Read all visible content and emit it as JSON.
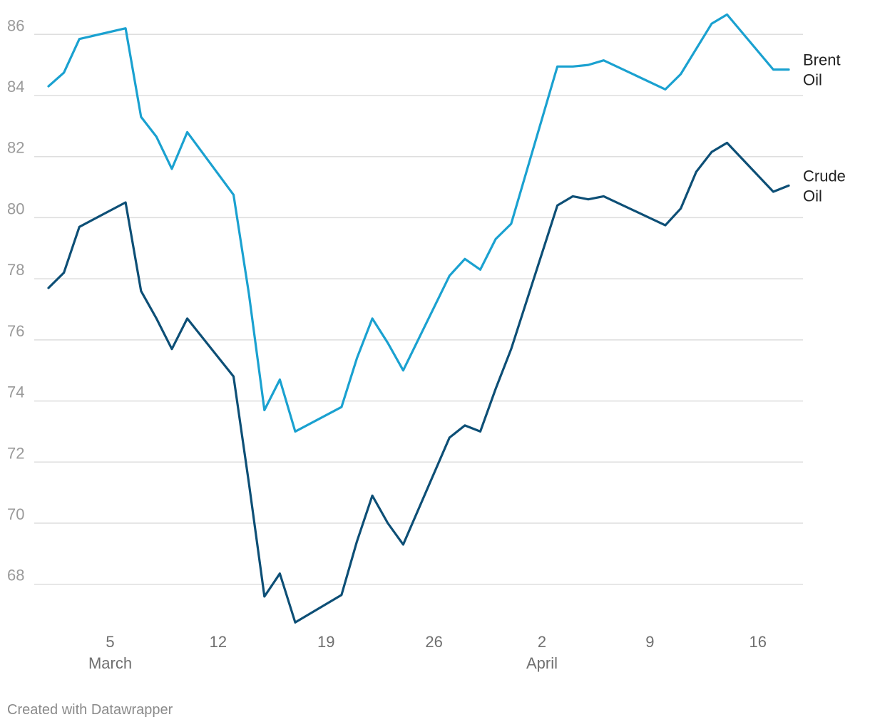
{
  "chart_data": {
    "type": "line",
    "title": "",
    "xlabel": "",
    "ylabel": "",
    "x_range": [
      "2020-03-01",
      "2020-04-18"
    ],
    "ylim": [
      66.5,
      86.8
    ],
    "y_ticks": [
      68,
      70,
      72,
      74,
      76,
      78,
      80,
      82,
      84,
      86
    ],
    "x_ticks": [
      {
        "date": "2020-03-05",
        "label": "5",
        "month": "March"
      },
      {
        "date": "2020-03-12",
        "label": "12",
        "month": ""
      },
      {
        "date": "2020-03-19",
        "label": "19",
        "month": ""
      },
      {
        "date": "2020-03-26",
        "label": "26",
        "month": ""
      },
      {
        "date": "2020-04-02",
        "label": "2",
        "month": "April"
      },
      {
        "date": "2020-04-09",
        "label": "9",
        "month": ""
      },
      {
        "date": "2020-04-16",
        "label": "16",
        "month": ""
      }
    ],
    "grid": true,
    "legend": "inline labels at right end of lines",
    "series": [
      {
        "name": "Brent Oil",
        "label_lines": [
          "Brent",
          "Oil"
        ],
        "color": "#1aa1d0",
        "points": [
          {
            "x": "2020-03-01",
            "y": 84.3
          },
          {
            "x": "2020-03-02",
            "y": 84.75
          },
          {
            "x": "2020-03-03",
            "y": 85.85
          },
          {
            "x": "2020-03-06",
            "y": 86.2
          },
          {
            "x": "2020-03-07",
            "y": 83.3
          },
          {
            "x": "2020-03-08",
            "y": 82.65
          },
          {
            "x": "2020-03-09",
            "y": 81.6
          },
          {
            "x": "2020-03-10",
            "y": 82.8
          },
          {
            "x": "2020-03-13",
            "y": 80.75
          },
          {
            "x": "2020-03-14",
            "y": 77.5
          },
          {
            "x": "2020-03-15",
            "y": 73.7
          },
          {
            "x": "2020-03-16",
            "y": 74.7
          },
          {
            "x": "2020-03-17",
            "y": 73.0
          },
          {
            "x": "2020-03-20",
            "y": 73.8
          },
          {
            "x": "2020-03-21",
            "y": 75.4
          },
          {
            "x": "2020-03-22",
            "y": 76.7
          },
          {
            "x": "2020-03-23",
            "y": 75.9
          },
          {
            "x": "2020-03-24",
            "y": 75.0
          },
          {
            "x": "2020-03-27",
            "y": 78.1
          },
          {
            "x": "2020-03-28",
            "y": 78.65
          },
          {
            "x": "2020-03-29",
            "y": 78.3
          },
          {
            "x": "2020-03-30",
            "y": 79.3
          },
          {
            "x": "2020-03-31",
            "y": 79.8
          },
          {
            "x": "2020-04-03",
            "y": 84.95
          },
          {
            "x": "2020-04-04",
            "y": 84.95
          },
          {
            "x": "2020-04-05",
            "y": 85.0
          },
          {
            "x": "2020-04-06",
            "y": 85.15
          },
          {
            "x": "2020-04-10",
            "y": 84.2
          },
          {
            "x": "2020-04-11",
            "y": 84.7
          },
          {
            "x": "2020-04-13",
            "y": 86.35
          },
          {
            "x": "2020-04-14",
            "y": 86.65
          },
          {
            "x": "2020-04-17",
            "y": 84.85
          },
          {
            "x": "2020-04-18",
            "y": 84.85
          }
        ]
      },
      {
        "name": "Crude Oil",
        "label_lines": [
          "Crude",
          "Oil"
        ],
        "color": "#0d4f76",
        "points": [
          {
            "x": "2020-03-01",
            "y": 77.7
          },
          {
            "x": "2020-03-02",
            "y": 78.2
          },
          {
            "x": "2020-03-03",
            "y": 79.7
          },
          {
            "x": "2020-03-06",
            "y": 80.5
          },
          {
            "x": "2020-03-07",
            "y": 77.6
          },
          {
            "x": "2020-03-08",
            "y": 76.7
          },
          {
            "x": "2020-03-09",
            "y": 75.7
          },
          {
            "x": "2020-03-10",
            "y": 76.7
          },
          {
            "x": "2020-03-13",
            "y": 74.8
          },
          {
            "x": "2020-03-14",
            "y": 71.3
          },
          {
            "x": "2020-03-15",
            "y": 67.6
          },
          {
            "x": "2020-03-16",
            "y": 68.35
          },
          {
            "x": "2020-03-17",
            "y": 66.75
          },
          {
            "x": "2020-03-20",
            "y": 67.65
          },
          {
            "x": "2020-03-21",
            "y": 69.4
          },
          {
            "x": "2020-03-22",
            "y": 70.9
          },
          {
            "x": "2020-03-23",
            "y": 70.0
          },
          {
            "x": "2020-03-24",
            "y": 69.3
          },
          {
            "x": "2020-03-27",
            "y": 72.8
          },
          {
            "x": "2020-03-28",
            "y": 73.2
          },
          {
            "x": "2020-03-29",
            "y": 73.0
          },
          {
            "x": "2020-03-30",
            "y": 74.4
          },
          {
            "x": "2020-03-31",
            "y": 75.7
          },
          {
            "x": "2020-04-03",
            "y": 80.4
          },
          {
            "x": "2020-04-04",
            "y": 80.7
          },
          {
            "x": "2020-04-05",
            "y": 80.6
          },
          {
            "x": "2020-04-06",
            "y": 80.7
          },
          {
            "x": "2020-04-10",
            "y": 79.75
          },
          {
            "x": "2020-04-11",
            "y": 80.3
          },
          {
            "x": "2020-04-12",
            "y": 81.5
          },
          {
            "x": "2020-04-13",
            "y": 82.15
          },
          {
            "x": "2020-04-14",
            "y": 82.45
          },
          {
            "x": "2020-04-17",
            "y": 80.85
          },
          {
            "x": "2020-04-18",
            "y": 81.05
          }
        ]
      }
    ]
  },
  "footer": {
    "credit": "Created with Datawrapper"
  }
}
